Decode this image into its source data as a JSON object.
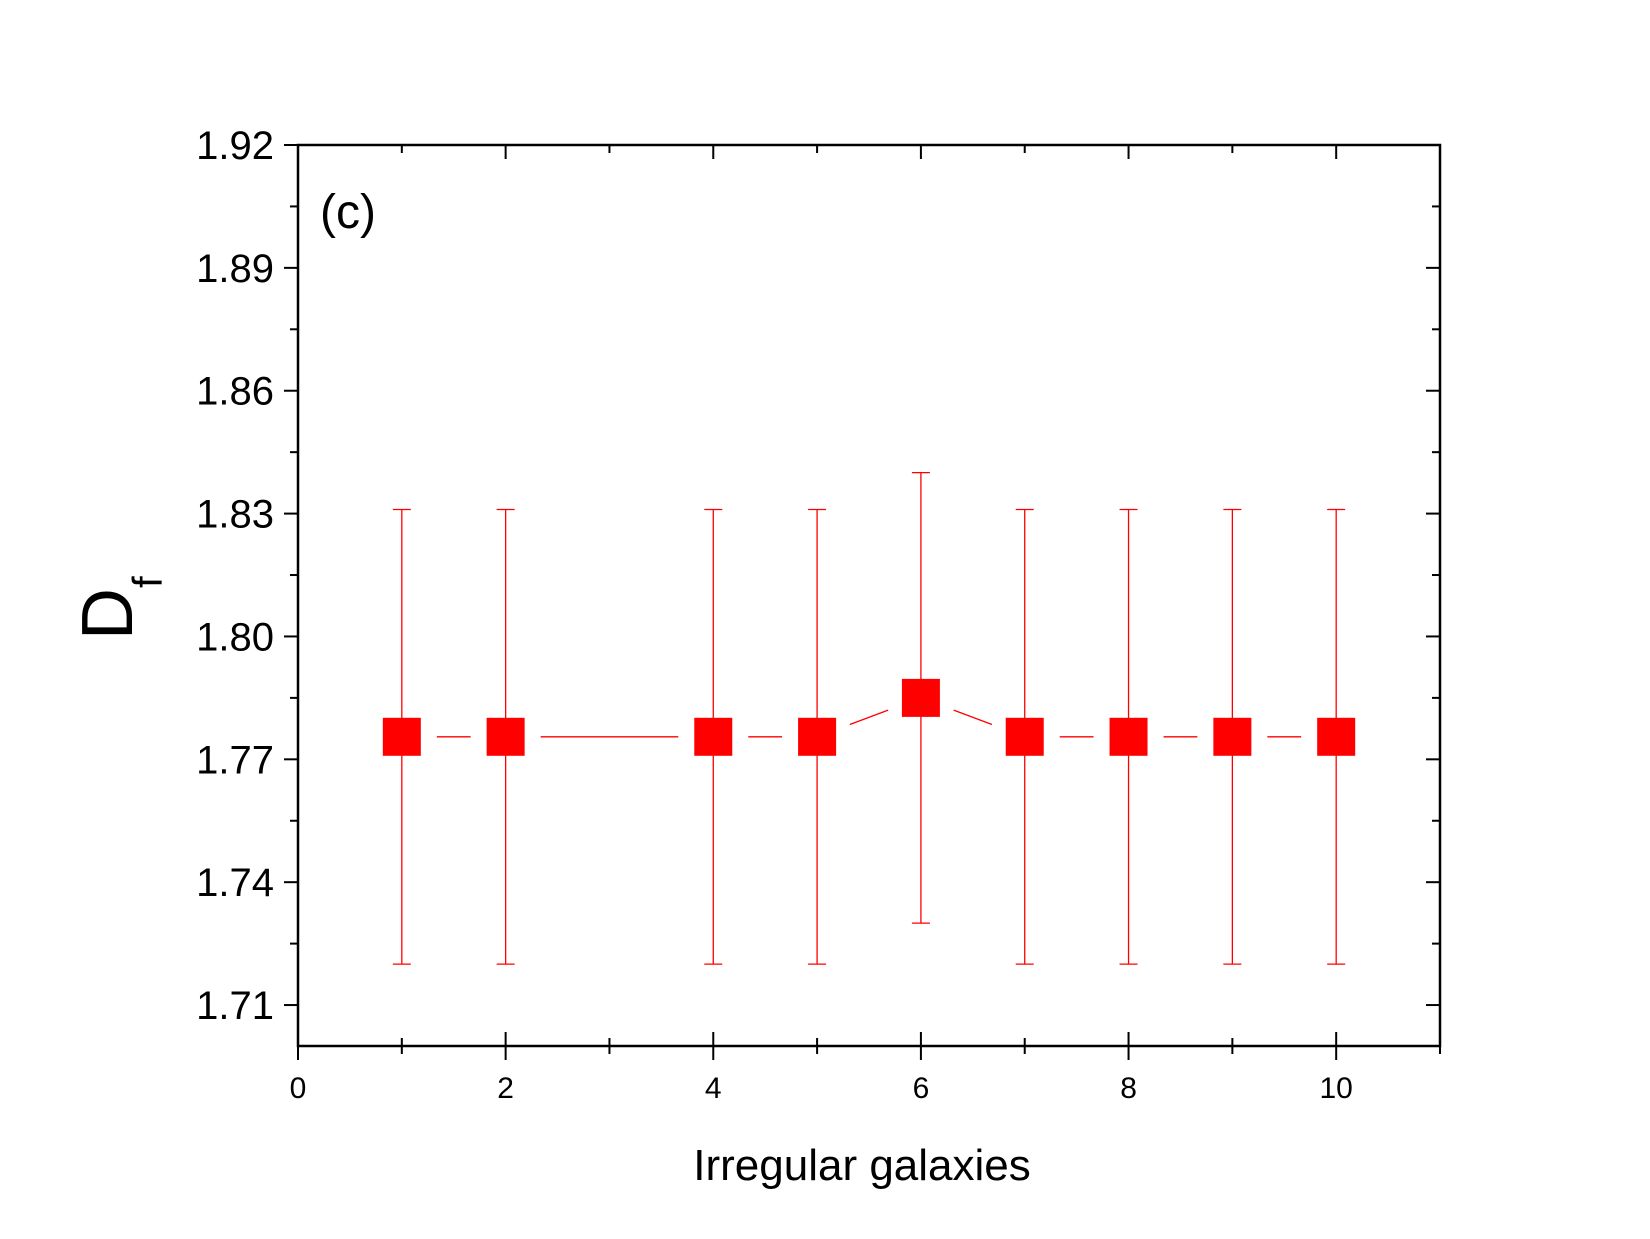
{
  "chart_data": {
    "type": "scatter",
    "panel_label": "(c)",
    "xlabel": "Irregular galaxies",
    "ylabel_main": "D",
    "ylabel_sub": "f",
    "xlim": [
      0,
      11
    ],
    "ylim": [
      1.7,
      1.92
    ],
    "x_ticks": [
      0,
      2,
      4,
      6,
      8,
      10
    ],
    "y_ticks": [
      1.71,
      1.74,
      1.77,
      1.8,
      1.83,
      1.86,
      1.89,
      1.92
    ],
    "grid": false,
    "legend": "none",
    "color": "#ff0000",
    "series": [
      {
        "x": [
          1,
          2,
          4,
          5,
          6,
          7,
          8,
          9,
          10
        ],
        "y": [
          1.7755,
          1.7755,
          1.7755,
          1.7755,
          1.785,
          1.7755,
          1.7755,
          1.7755,
          1.7755
        ],
        "err_low": [
          1.72,
          1.72,
          1.72,
          1.72,
          1.73,
          1.72,
          1.72,
          1.72,
          1.72
        ],
        "err_high": [
          1.831,
          1.831,
          1.831,
          1.831,
          1.84,
          1.831,
          1.831,
          1.831,
          1.831
        ]
      }
    ]
  }
}
